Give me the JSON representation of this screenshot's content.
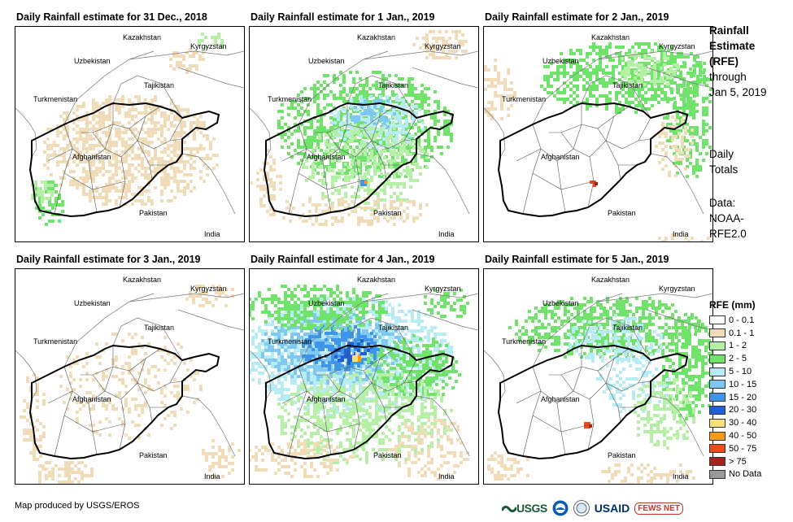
{
  "panels": [
    {
      "title": "Daily Rainfall estimate for 31 Dec., 2018",
      "day": "2018-12-31"
    },
    {
      "title": "Daily Rainfall estimate for 1 Jan., 2019",
      "day": "2019-01-01"
    },
    {
      "title": "Daily Rainfall estimate for 2 Jan., 2019",
      "day": "2019-01-02"
    },
    {
      "title": "Daily Rainfall estimate for 3 Jan., 2019",
      "day": "2019-01-03"
    },
    {
      "title": "Daily Rainfall estimate for 4 Jan., 2019",
      "day": "2019-01-04"
    },
    {
      "title": "Daily Rainfall estimate for 5 Jan., 2019",
      "day": "2019-01-05"
    }
  ],
  "map_labels": {
    "kazakhstan": "Kazakhstan",
    "kyrgyzstan": "Kyrgyzstan",
    "uzbekistan": "Uzbekistan",
    "tajikistan": "Tajikistan",
    "turkmenistan": "Turkmenistan",
    "afghanistan": "Afghanistan",
    "pakistan": "Pakistan",
    "india": "India"
  },
  "side": {
    "title_line1": "Rainfall",
    "title_line2": "Estimate",
    "title_line3": "(RFE)",
    "through": "through",
    "date": "Jan 5, 2019",
    "totals_line1": "Daily",
    "totals_line2": "Totals",
    "data_line1": "Data:",
    "data_line2": "NOAA-",
    "data_line3": "RFE2.0"
  },
  "legend": {
    "title": "RFE (mm)",
    "items": [
      {
        "label": "0 - 0.1",
        "color": "#ffffff"
      },
      {
        "label": "0.1 - 1",
        "color": "#f0dcb8"
      },
      {
        "label": "1 - 2",
        "color": "#b5f0a6"
      },
      {
        "label": "2 - 5",
        "color": "#6fe36a"
      },
      {
        "label": "5 - 10",
        "color": "#b8ecf5"
      },
      {
        "label": "10 - 15",
        "color": "#7fc8f3"
      },
      {
        "label": "15 - 20",
        "color": "#3f95e8"
      },
      {
        "label": "20 - 30",
        "color": "#1f5fd8"
      },
      {
        "label": "30 - 40",
        "color": "#f7e07a"
      },
      {
        "label": "40 - 50",
        "color": "#f59a1c"
      },
      {
        "label": "50 - 75",
        "color": "#ee4a1a"
      },
      {
        "label": "> 75",
        "color": "#a8201e"
      },
      {
        "label": "No Data",
        "color": "#999999"
      }
    ]
  },
  "footer": {
    "credit": "Map produced by USGS/EROS",
    "logo_usgs": "USGS",
    "logo_usaid": "USAID",
    "logo_fews": "FEWS NET"
  }
}
